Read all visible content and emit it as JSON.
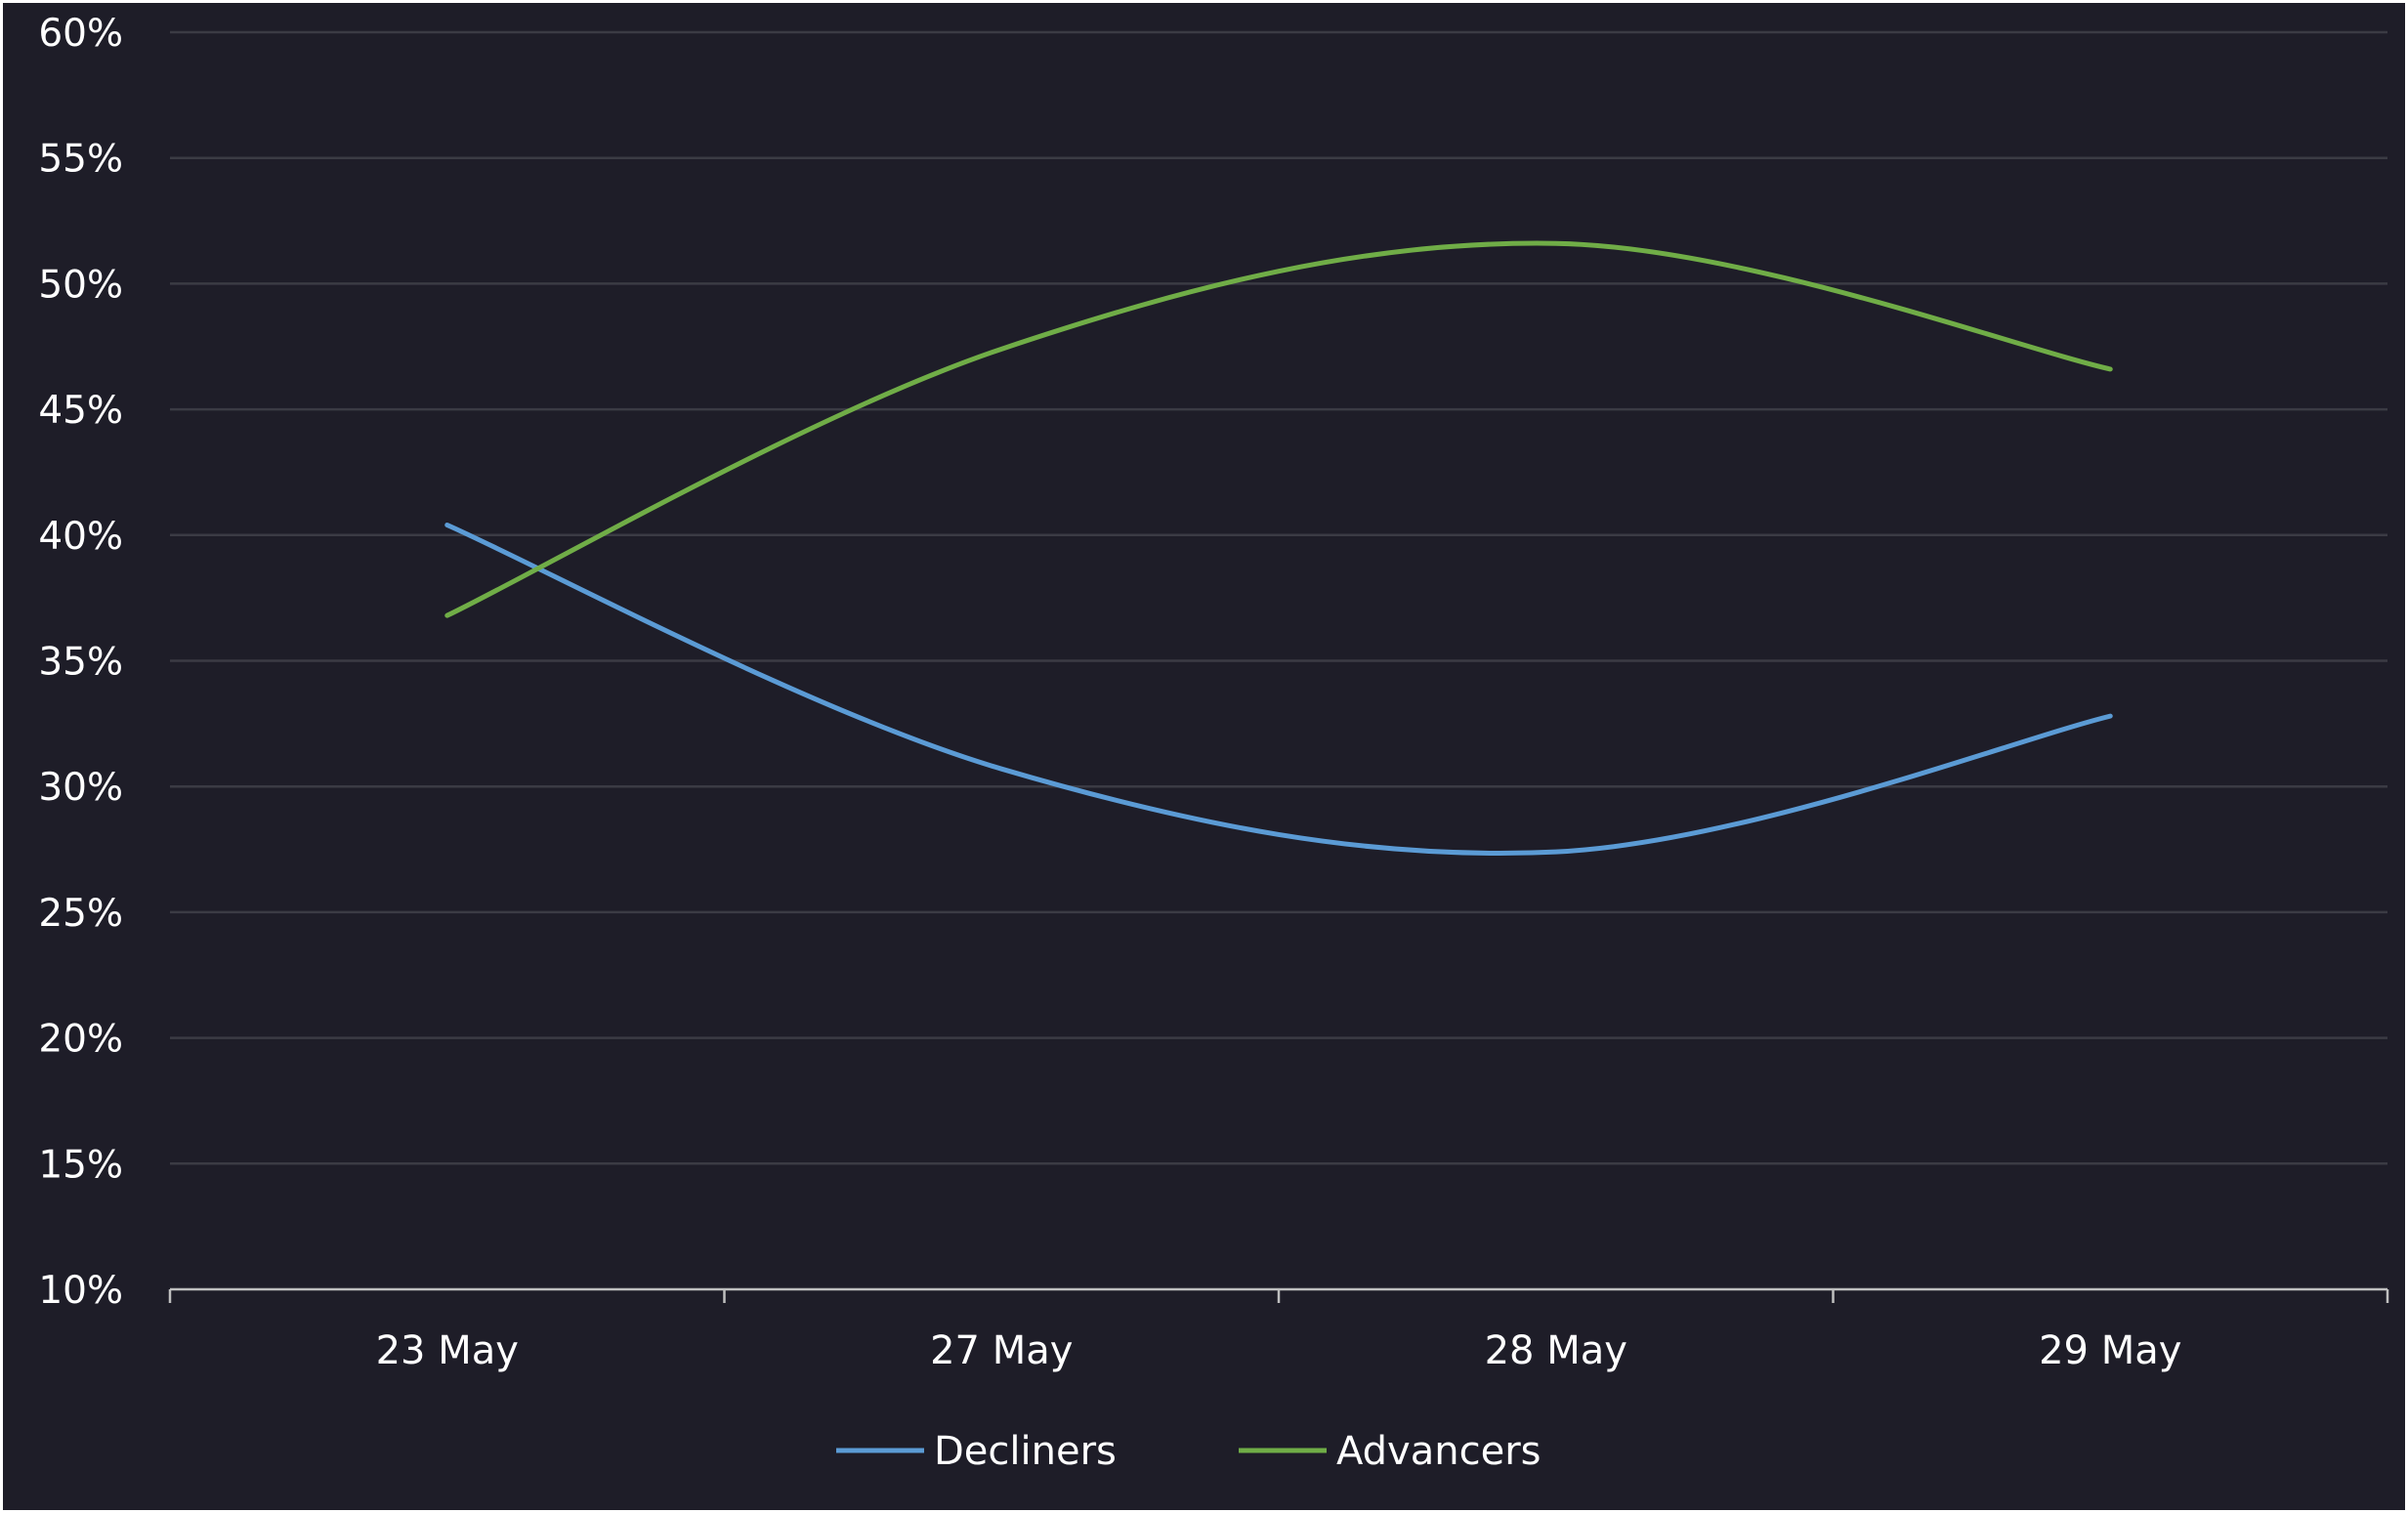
{
  "chart_data": {
    "type": "line",
    "categories": [
      "23 May",
      "27 May",
      "28 May",
      "29 May"
    ],
    "y_ticks": [
      "10%",
      "15%",
      "20%",
      "25%",
      "30%",
      "35%",
      "40%",
      "45%",
      "50%",
      "55%",
      "60%"
    ],
    "ylim": [
      10,
      60
    ],
    "grid": true,
    "legend_position": "bottom",
    "series": [
      {
        "name": "Decliners",
        "color": "#5b9bd5",
        "values": [
          40.4,
          30.7,
          27.4,
          32.8
        ]
      },
      {
        "name": "Advancers",
        "color": "#70ad47",
        "values": [
          36.8,
          47.4,
          51.6,
          46.6
        ]
      }
    ],
    "colors": {
      "background": "#1e1d28",
      "grid": "#3b3b44",
      "axis": "#bfbfbf",
      "text": "#ffffff"
    }
  }
}
